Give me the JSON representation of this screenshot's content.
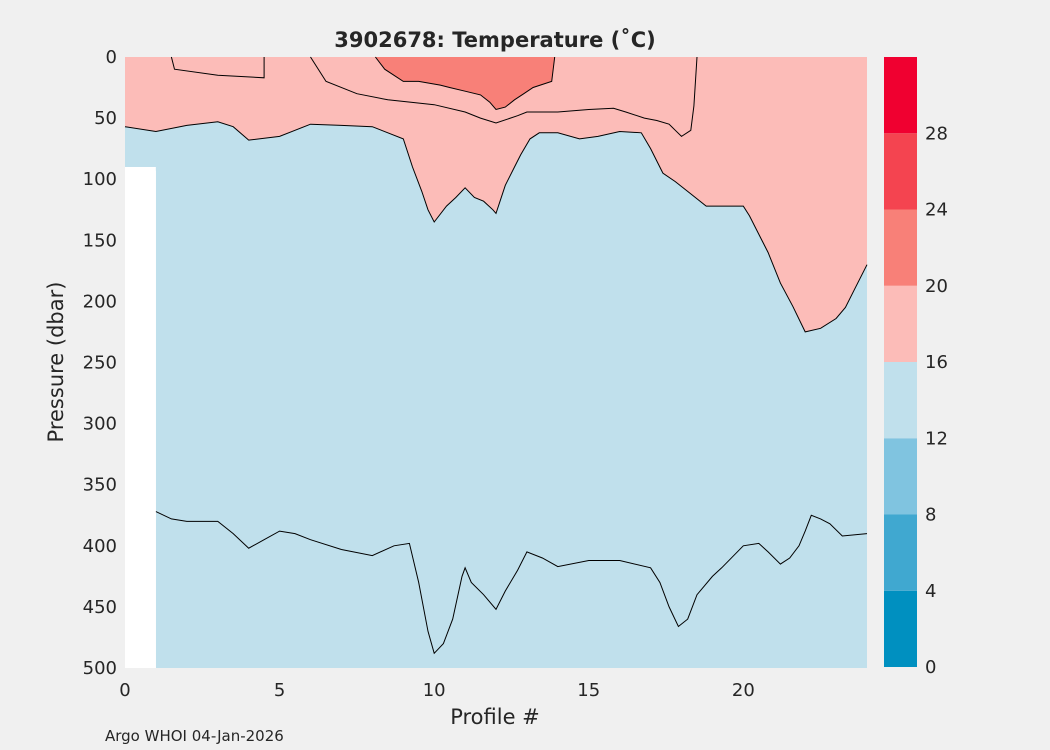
{
  "chart_data": {
    "type": "contour",
    "title": "3902678:  Temperature (˚C)",
    "xlabel": "Profile #",
    "ylabel": "Pressure (dbar)",
    "xlim": [
      0,
      24
    ],
    "ylim": [
      0,
      500
    ],
    "y_reversed": true,
    "x_ticks": [
      "0",
      "5",
      "10",
      "15",
      "20"
    ],
    "y_ticks": [
      "0",
      "50",
      "100",
      "150",
      "200",
      "250",
      "300",
      "350",
      "400",
      "450",
      "500"
    ],
    "data_start_profile": 1,
    "colorbar": {
      "ticks": [
        "0",
        "4",
        "8",
        "12",
        "16",
        "20",
        "24",
        "28"
      ],
      "range": [
        0,
        32
      ],
      "bands": [
        {
          "from": 0,
          "to": 4,
          "color": "#0090c0"
        },
        {
          "from": 4,
          "to": 8,
          "color": "#40a8d0"
        },
        {
          "from": 8,
          "to": 12,
          "color": "#80c4e0"
        },
        {
          "from": 12,
          "to": 16,
          "color": "#c0e0ec"
        },
        {
          "from": 16,
          "to": 20,
          "color": "#fcbcb8"
        },
        {
          "from": 20,
          "to": 24,
          "color": "#f88078"
        },
        {
          "from": 24,
          "to": 28,
          "color": "#f44450"
        },
        {
          "from": 28,
          "to": 32,
          "color": "#f00030"
        }
      ]
    },
    "contours": [
      {
        "level": 16,
        "lower_color": "#c0e0ec",
        "upper_color": "#fcbcb8",
        "points": [
          [
            0,
            57
          ],
          [
            1,
            61
          ],
          [
            2,
            56
          ],
          [
            3,
            53
          ],
          [
            3.5,
            57
          ],
          [
            4,
            68
          ],
          [
            5,
            65
          ],
          [
            5.5,
            60
          ],
          [
            6,
            55
          ],
          [
            7,
            56
          ],
          [
            8,
            57
          ],
          [
            9,
            67
          ],
          [
            9.3,
            90
          ],
          [
            9.6,
            110
          ],
          [
            9.8,
            125
          ],
          [
            10,
            135
          ],
          [
            10.4,
            122
          ],
          [
            10.7,
            115
          ],
          [
            11,
            107
          ],
          [
            11.3,
            115
          ],
          [
            11.6,
            118
          ],
          [
            11.9,
            125
          ],
          [
            12,
            128
          ],
          [
            12.3,
            105
          ],
          [
            12.6,
            90
          ],
          [
            12.8,
            80
          ],
          [
            13.1,
            67
          ],
          [
            13.4,
            62
          ],
          [
            14,
            62
          ],
          [
            14.7,
            67
          ],
          [
            15.3,
            65
          ],
          [
            16,
            61
          ],
          [
            16.7,
            62
          ],
          [
            17,
            75
          ],
          [
            17.4,
            95
          ],
          [
            17.8,
            102
          ],
          [
            18.3,
            112
          ],
          [
            18.8,
            122
          ],
          [
            20,
            122
          ],
          [
            20.2,
            130
          ],
          [
            20.4,
            140
          ],
          [
            20.8,
            160
          ],
          [
            21.2,
            185
          ],
          [
            21.6,
            204
          ],
          [
            22,
            225
          ],
          [
            22.5,
            222
          ],
          [
            23,
            214
          ],
          [
            23.3,
            205
          ],
          [
            23.6,
            190
          ],
          [
            24,
            170
          ]
        ]
      },
      {
        "level": 20,
        "lower_color": "#fcbcb8",
        "upper_color": "#f88078",
        "points": [
          [
            8.1,
            0
          ],
          [
            8.4,
            10
          ],
          [
            9,
            20
          ],
          [
            9.5,
            20
          ],
          [
            10.2,
            23
          ],
          [
            10.5,
            25
          ],
          [
            11,
            28
          ],
          [
            11.5,
            31
          ],
          [
            11.8,
            37
          ],
          [
            12,
            43
          ],
          [
            12.3,
            41
          ],
          [
            12.6,
            35
          ],
          [
            12.9,
            30
          ],
          [
            13.2,
            25
          ],
          [
            13.8,
            20
          ],
          [
            13.9,
            0
          ]
        ]
      },
      {
        "level": 16,
        "lower_color": "#c0e0ec",
        "upper_color": "#c0e0ec",
        "points": [
          [
            1,
            372
          ],
          [
            1.5,
            378
          ],
          [
            2,
            380
          ],
          [
            3,
            380
          ],
          [
            3.5,
            390
          ],
          [
            4,
            402
          ],
          [
            4.5,
            395
          ],
          [
            5,
            388
          ],
          [
            5.5,
            390
          ],
          [
            6,
            395
          ],
          [
            7,
            403
          ],
          [
            8,
            408
          ],
          [
            8.7,
            400
          ],
          [
            9.2,
            398
          ],
          [
            9.5,
            430
          ],
          [
            9.8,
            470
          ],
          [
            10,
            488
          ],
          [
            10.3,
            480
          ],
          [
            10.6,
            460
          ],
          [
            10.9,
            425
          ],
          [
            11,
            418
          ],
          [
            11.2,
            430
          ],
          [
            11.6,
            440
          ],
          [
            12,
            452
          ],
          [
            12.3,
            437
          ],
          [
            12.7,
            420
          ],
          [
            13,
            405
          ],
          [
            13.5,
            410
          ],
          [
            14,
            417
          ],
          [
            15,
            412
          ],
          [
            16,
            412
          ],
          [
            17,
            418
          ],
          [
            17.3,
            430
          ],
          [
            17.6,
            450
          ],
          [
            17.9,
            466
          ],
          [
            18.2,
            460
          ],
          [
            18.5,
            440
          ],
          [
            19,
            425
          ],
          [
            19.3,
            418
          ],
          [
            20,
            400
          ],
          [
            20.5,
            398
          ],
          [
            20.8,
            405
          ],
          [
            21.2,
            415
          ],
          [
            21.5,
            410
          ],
          [
            21.8,
            400
          ],
          [
            22,
            388
          ],
          [
            22.2,
            375
          ],
          [
            22.5,
            378
          ],
          [
            22.8,
            382
          ],
          [
            23.2,
            392
          ],
          [
            24,
            390
          ]
        ]
      },
      {
        "level": 16,
        "lower_color": "#fcbcb8",
        "upper_color": "#fcbcb8",
        "points": [
          [
            1.5,
            0
          ],
          [
            1.6,
            10
          ],
          [
            3,
            15
          ],
          [
            4.5,
            17
          ],
          [
            4.5,
            0
          ]
        ]
      },
      {
        "level": 16,
        "lower_color": "#fcbcb8",
        "upper_color": "#fcbcb8",
        "points": [
          [
            6,
            0
          ],
          [
            6.5,
            20
          ],
          [
            7.5,
            30
          ],
          [
            8.5,
            35
          ],
          [
            10,
            39
          ],
          [
            11,
            45
          ],
          [
            11.5,
            50
          ],
          [
            12,
            54
          ],
          [
            12.7,
            48
          ],
          [
            13,
            45
          ],
          [
            14,
            45
          ],
          [
            15,
            43
          ],
          [
            15.8,
            42
          ],
          [
            16.2,
            45
          ],
          [
            16.8,
            50
          ],
          [
            17.2,
            52
          ],
          [
            17.6,
            55
          ],
          [
            17.8,
            60
          ],
          [
            18,
            65
          ],
          [
            18.3,
            60
          ],
          [
            18.4,
            40
          ],
          [
            18.5,
            0
          ]
        ]
      }
    ]
  },
  "footer": "Argo WHOI 04-Jan-2026"
}
